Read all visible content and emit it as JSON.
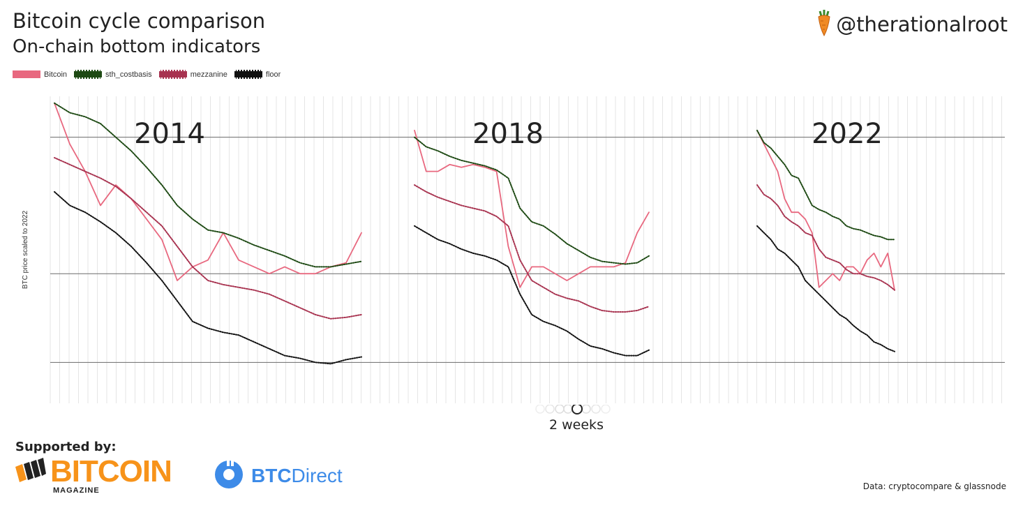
{
  "header": {
    "title": "Bitcoin cycle comparison",
    "subtitle": "On-chain bottom indicators",
    "handle": "@therationalroot"
  },
  "footer": {
    "supported_label": "Supported by:",
    "sponsor1_name": "BITCOIN",
    "sponsor1_sub": "MAGAZINE",
    "sponsor2_name_bold": "BTC",
    "sponsor2_name_light": "Direct",
    "source": "Data: cryptocompare & glassnode"
  },
  "slider": {
    "label": "2 weeks"
  },
  "colors": {
    "bitcoin": "#e8687f",
    "sth_costbasis": "#1e4a14",
    "mezzanine": "#a83350",
    "floor": "#111111",
    "brand_orange": "#f7931a",
    "brand_blue": "#3d8be8"
  },
  "chart_data": {
    "type": "line",
    "title": "Bitcoin cycle comparison",
    "ylabel": "BTC price scaled to 2022",
    "xlabel": "",
    "legend": [
      "Bitcoin",
      "sth_costbasis",
      "mezzanine",
      "floor"
    ],
    "legend_position": "top-left",
    "grid": true,
    "ylim": [
      -0.95,
      1.3
    ],
    "reference_levels": [
      1.0,
      0.0,
      -0.65
    ],
    "panels": [
      {
        "label": "2014",
        "x": [
          0,
          0.05,
          0.1,
          0.15,
          0.2,
          0.25,
          0.3,
          0.35,
          0.4,
          0.45,
          0.5,
          0.55,
          0.6,
          0.65,
          0.7,
          0.75,
          0.8,
          0.85,
          0.9,
          0.95,
          1
        ],
        "series": [
          {
            "name": "Bitcoin",
            "values": [
              1.25,
              0.95,
              0.75,
              0.5,
              0.65,
              0.55,
              0.4,
              0.25,
              -0.05,
              0.05,
              0.1,
              0.3,
              0.1,
              0.05,
              0.0,
              0.05,
              0.0,
              0.0,
              0.05,
              0.08,
              0.3
            ]
          },
          {
            "name": "sth_costbasis",
            "values": [
              1.25,
              1.18,
              1.15,
              1.1,
              1.0,
              0.9,
              0.78,
              0.65,
              0.5,
              0.4,
              0.32,
              0.3,
              0.26,
              0.21,
              0.17,
              0.13,
              0.08,
              0.05,
              0.05,
              0.07,
              0.09
            ]
          },
          {
            "name": "mezzanine",
            "values": [
              0.85,
              0.8,
              0.75,
              0.7,
              0.64,
              0.55,
              0.45,
              0.35,
              0.2,
              0.05,
              -0.05,
              -0.08,
              -0.1,
              -0.12,
              -0.15,
              -0.2,
              -0.25,
              -0.3,
              -0.33,
              -0.32,
              -0.3
            ]
          },
          {
            "name": "floor",
            "values": [
              0.6,
              0.5,
              0.45,
              0.38,
              0.3,
              0.2,
              0.08,
              -0.05,
              -0.2,
              -0.35,
              -0.4,
              -0.43,
              -0.45,
              -0.5,
              -0.55,
              -0.6,
              -0.62,
              -0.65,
              -0.66,
              -0.63,
              -0.61
            ]
          }
        ]
      },
      {
        "label": "2018",
        "x": [
          0,
          0.05,
          0.1,
          0.15,
          0.2,
          0.25,
          0.3,
          0.35,
          0.4,
          0.45,
          0.5,
          0.55,
          0.6,
          0.65,
          0.7,
          0.75,
          0.8,
          0.85,
          0.9,
          0.95,
          1
        ],
        "series": [
          {
            "name": "Bitcoin",
            "values": [
              1.05,
              0.75,
              0.75,
              0.8,
              0.78,
              0.8,
              0.78,
              0.75,
              0.2,
              -0.1,
              0.05,
              0.05,
              0.0,
              -0.05,
              0.0,
              0.05,
              0.05,
              0.05,
              0.08,
              0.3,
              0.45
            ]
          },
          {
            "name": "sth_costbasis",
            "values": [
              1.0,
              0.93,
              0.9,
              0.86,
              0.83,
              0.81,
              0.79,
              0.76,
              0.7,
              0.48,
              0.38,
              0.35,
              0.29,
              0.22,
              0.17,
              0.12,
              0.09,
              0.08,
              0.07,
              0.08,
              0.13
            ]
          },
          {
            "name": "mezzanine",
            "values": [
              0.65,
              0.6,
              0.56,
              0.53,
              0.5,
              0.48,
              0.46,
              0.42,
              0.35,
              0.1,
              -0.05,
              -0.1,
              -0.15,
              -0.18,
              -0.2,
              -0.24,
              -0.27,
              -0.28,
              -0.28,
              -0.27,
              -0.24
            ]
          },
          {
            "name": "floor",
            "values": [
              0.35,
              0.3,
              0.25,
              0.22,
              0.18,
              0.15,
              0.13,
              0.1,
              0.05,
              -0.15,
              -0.3,
              -0.35,
              -0.38,
              -0.42,
              -0.48,
              -0.53,
              -0.55,
              -0.58,
              -0.6,
              -0.6,
              -0.56
            ]
          }
        ]
      },
      {
        "label": "2022",
        "x": [
          0,
          0.05,
          0.1,
          0.15,
          0.2,
          0.25,
          0.3,
          0.35,
          0.4,
          0.45,
          0.5,
          0.55,
          0.6,
          0.65,
          0.7,
          0.75,
          0.8,
          0.85,
          0.9,
          0.95,
          1
        ],
        "series": [
          {
            "name": "Bitcoin",
            "values": [
              1.05,
              0.95,
              0.85,
              0.75,
              0.55,
              0.45,
              0.45,
              0.4,
              0.3,
              -0.1,
              -0.05,
              0.0,
              -0.05,
              0.05,
              0.05,
              0.0,
              0.1,
              0.15,
              0.05,
              0.15,
              -0.12
            ]
          },
          {
            "name": "sth_costbasis",
            "values": [
              1.05,
              0.96,
              0.92,
              0.86,
              0.8,
              0.72,
              0.7,
              0.6,
              0.5,
              0.47,
              0.45,
              0.42,
              0.4,
              0.35,
              0.33,
              0.32,
              0.3,
              0.28,
              0.27,
              0.25,
              0.25
            ]
          },
          {
            "name": "mezzanine",
            "values": [
              0.65,
              0.58,
              0.55,
              0.5,
              0.42,
              0.38,
              0.35,
              0.3,
              0.28,
              0.18,
              0.12,
              0.1,
              0.08,
              0.03,
              0.0,
              0.0,
              -0.02,
              -0.03,
              -0.05,
              -0.08,
              -0.12
            ]
          },
          {
            "name": "floor",
            "values": [
              0.35,
              0.3,
              0.25,
              0.18,
              0.15,
              0.1,
              0.05,
              -0.05,
              -0.1,
              -0.15,
              -0.2,
              -0.25,
              -0.3,
              -0.33,
              -0.38,
              -0.42,
              -0.45,
              -0.5,
              -0.52,
              -0.55,
              -0.57
            ]
          }
        ]
      }
    ]
  }
}
